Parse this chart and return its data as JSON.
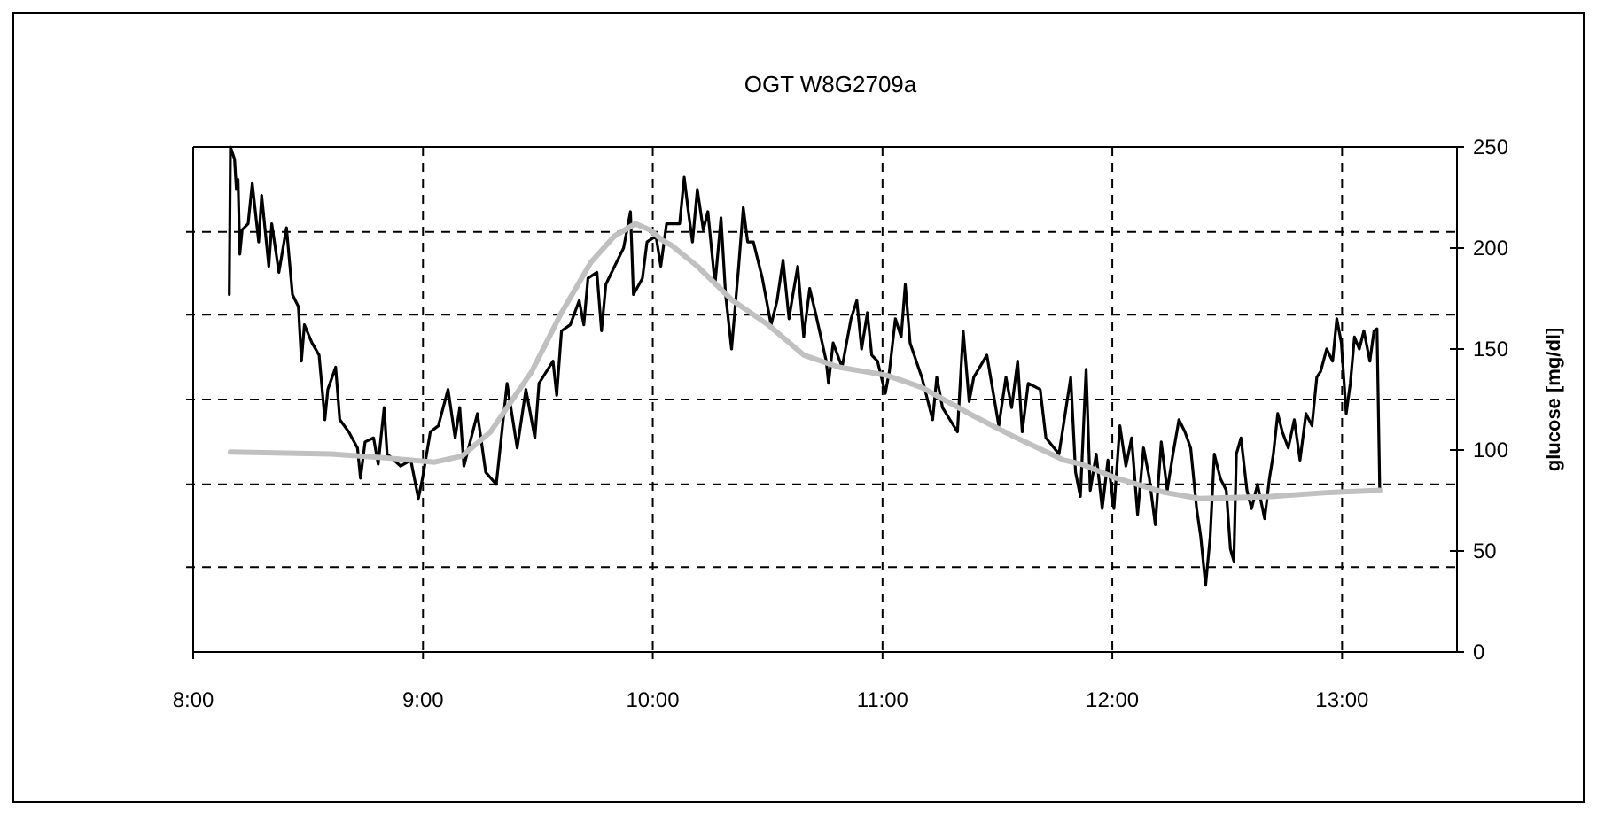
{
  "chart_data": {
    "type": "line",
    "title": "OGT W8G2709a",
    "y2label": "glucose [mg/dl]",
    "xlim": [
      8,
      13.5
    ],
    "xticks": [
      {
        "value": 8,
        "label": "8:00"
      },
      {
        "value": 9,
        "label": "9:00"
      },
      {
        "value": 10,
        "label": "10:00"
      },
      {
        "value": 11,
        "label": "11:00"
      },
      {
        "value": 12,
        "label": "12:00"
      },
      {
        "value": 13,
        "label": "13:00"
      }
    ],
    "ref_lines": [
      {
        "axis": "y2",
        "value": 42,
        "line_style": "dashed"
      },
      {
        "axis": "y2",
        "value": 83,
        "line_style": "dashed"
      },
      {
        "axis": "y2",
        "value": 125,
        "line_style": "dashed"
      },
      {
        "axis": "y2",
        "value": 167,
        "line_style": "dashed"
      },
      {
        "axis": "y2",
        "value": 208,
        "line_style": "dashed"
      }
    ],
    "y2lim": [
      0,
      250
    ],
    "y2ticks": [
      0,
      50,
      100,
      150,
      200,
      250
    ],
    "grid": "x",
    "series": [
      {
        "axis": "y2",
        "color": "#000000",
        "x": [
          8.157,
          8.162,
          8.18,
          8.188,
          8.195,
          8.203,
          8.213,
          8.239,
          8.257,
          8.285,
          8.298,
          8.329,
          8.342,
          8.373,
          8.406,
          8.432,
          8.458,
          8.471,
          8.484,
          8.517,
          8.548,
          8.573,
          8.586,
          8.62,
          8.638,
          8.677,
          8.715,
          8.728,
          8.748,
          8.785,
          8.805,
          8.831,
          8.844,
          8.903,
          8.947,
          8.98,
          8.998,
          9.032,
          9.067,
          9.109,
          9.14,
          9.16,
          9.178,
          9.237,
          9.273,
          9.319,
          9.366,
          9.41,
          9.448,
          9.487,
          9.505,
          9.566,
          9.582,
          9.603,
          9.641,
          9.68,
          9.7,
          9.718,
          9.757,
          9.777,
          9.796,
          9.834,
          9.873,
          9.903,
          9.916,
          9.955,
          9.975,
          10.014,
          10.035,
          10.06,
          10.117,
          10.137,
          10.155,
          10.173,
          10.194,
          10.22,
          10.24,
          10.271,
          10.297,
          10.317,
          10.343,
          10.374,
          10.394,
          10.413,
          10.438,
          10.477,
          10.515,
          10.541,
          10.567,
          10.593,
          10.61,
          10.631,
          10.657,
          10.683,
          10.708,
          10.755,
          10.765,
          10.785,
          10.824,
          10.863,
          10.888,
          10.909,
          10.934,
          10.953,
          10.978,
          11.012,
          11.03,
          11.056,
          11.081,
          11.099,
          11.12,
          11.171,
          11.218,
          11.236,
          11.261,
          11.326,
          11.351,
          11.377,
          11.397,
          11.454,
          11.506,
          11.537,
          11.562,
          11.588,
          11.608,
          11.634,
          11.686,
          11.711,
          11.768,
          11.819,
          11.84,
          11.861,
          11.886,
          11.904,
          11.93,
          11.956,
          11.981,
          12.007,
          12.033,
          12.059,
          12.084,
          12.11,
          12.136,
          12.161,
          12.187,
          12.213,
          12.239,
          12.264,
          12.29,
          12.316,
          12.341,
          12.367,
          12.385,
          12.406,
          12.426,
          12.444,
          12.47,
          12.496,
          12.514,
          12.529,
          12.54,
          12.56,
          12.586,
          12.606,
          12.632,
          12.663,
          12.684,
          12.701,
          12.72,
          12.74,
          12.766,
          12.792,
          12.817,
          12.843,
          12.869,
          12.89,
          12.907,
          12.933,
          12.959,
          12.977,
          12.997,
          13.018,
          13.036,
          13.054,
          13.075,
          13.095,
          13.121,
          13.139,
          13.152,
          13.164
        ],
        "values": [
          177,
          250,
          244,
          229,
          234,
          197,
          209,
          212,
          232,
          203,
          226,
          191,
          212,
          188,
          210,
          177,
          171,
          144,
          162,
          153,
          147,
          115,
          130,
          141,
          115,
          109,
          101,
          86,
          104,
          106,
          93,
          121,
          98,
          92,
          95,
          76,
          86,
          109,
          112,
          130,
          106,
          121,
          92,
          118,
          89,
          83,
          133,
          101,
          130,
          106,
          133,
          144,
          127,
          159,
          162,
          174,
          162,
          185,
          188,
          159,
          182,
          191,
          200,
          218,
          177,
          185,
          203,
          206,
          191,
          212,
          212,
          235,
          218,
          203,
          229,
          209,
          218,
          182,
          215,
          177,
          150,
          191,
          220,
          203,
          203,
          185,
          162,
          174,
          194,
          165,
          177,
          191,
          156,
          180,
          168,
          144,
          133,
          153,
          141,
          165,
          174,
          150,
          168,
          147,
          144,
          128,
          139,
          165,
          156,
          182,
          153,
          136,
          115,
          136,
          121,
          109,
          159,
          124,
          136,
          147,
          112,
          136,
          121,
          144,
          109,
          133,
          130,
          106,
          98,
          136,
          89,
          77,
          140,
          80,
          98,
          71,
          95,
          71,
          112,
          92,
          106,
          68,
          101,
          86,
          63,
          104,
          80,
          98,
          115,
          109,
          101,
          71,
          57,
          33,
          57,
          98,
          86,
          80,
          51,
          45,
          98,
          106,
          80,
          71,
          83,
          66,
          86,
          98,
          118,
          109,
          101,
          115,
          95,
          118,
          112,
          136,
          139,
          150,
          144,
          165,
          153,
          118,
          133,
          156,
          150,
          159,
          144,
          159,
          160,
          80
        ]
      },
      {
        "axis": "y2",
        "color": "#c0c0c0",
        "x": [
          8.162,
          8.6,
          8.85,
          9.05,
          9.17,
          9.294,
          9.474,
          9.603,
          9.731,
          9.834,
          9.924,
          9.988,
          10.04,
          10.086,
          10.194,
          10.348,
          10.502,
          10.657,
          10.811,
          11.017,
          11.171,
          11.377,
          11.583,
          11.789,
          11.866,
          12.019,
          12.227,
          12.38,
          12.69,
          12.946,
          13.164
        ],
        "values": [
          99,
          98,
          96,
          94,
          97,
          109,
          139,
          168,
          193,
          206,
          212,
          209,
          204,
          201,
          191,
          174,
          162,
          147,
          141,
          137,
          131,
          118,
          106,
          95,
          93,
          86,
          79,
          76,
          77,
          79,
          80
        ]
      }
    ]
  }
}
